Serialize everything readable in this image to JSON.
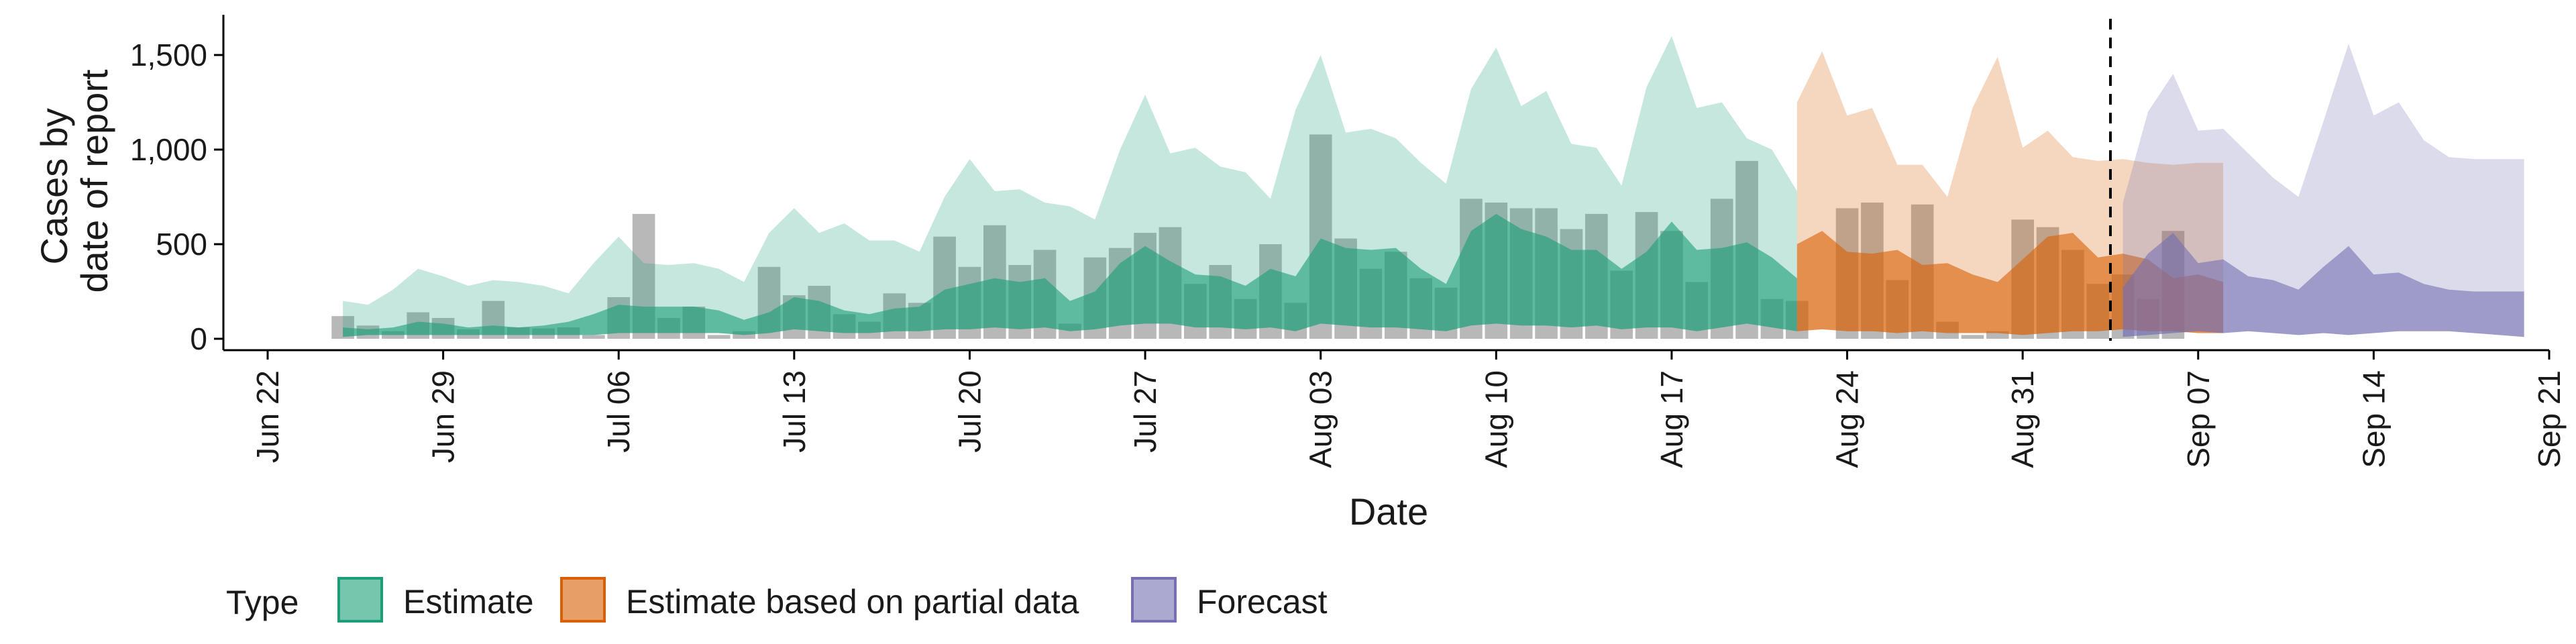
{
  "chart_data": {
    "type": "area",
    "xlabel": "Date",
    "ylabel_lines": [
      "Cases by",
      "date of report"
    ],
    "ylim": [
      0,
      1650
    ],
    "yticks": [
      0,
      500,
      1000,
      1500
    ],
    "ytick_labels": [
      "0",
      "500",
      "1,000",
      "1,500"
    ],
    "x_start": "2020-06-22",
    "x_end": "2020-09-21",
    "xticks": [
      "Jun 22",
      "Jun 29",
      "Jul 06",
      "Jul 13",
      "Jul 20",
      "Jul 27",
      "Aug 03",
      "Aug 10",
      "Aug 17",
      "Aug 24",
      "Aug 31",
      "Sep 07",
      "Sep 14",
      "Sep 21"
    ],
    "forecast_cutoff": "2020-09-03",
    "legend": {
      "title": "Type",
      "position": "bottom",
      "entries": [
        {
          "name": "Estimate",
          "color": "#1b9e77"
        },
        {
          "name": "Estimate based on partial data",
          "color": "#d95f02"
        },
        {
          "name": "Forecast",
          "color": "#7570b3"
        }
      ]
    },
    "colors": {
      "Estimate": "#1b9e77",
      "Estimate based on partial data": "#d95f02",
      "Forecast": "#7570b3",
      "bars": "#a0a0a0"
    },
    "bars": {
      "start": "2020-06-25",
      "values": [
        120,
        70,
        40,
        140,
        110,
        50,
        200,
        60,
        55,
        60,
        20,
        220,
        660,
        110,
        170,
        20,
        40,
        380,
        230,
        280,
        130,
        90,
        240,
        190,
        540,
        380,
        600,
        390,
        470,
        80,
        430,
        480,
        560,
        590,
        290,
        390,
        210,
        500,
        190,
        1080,
        530,
        370,
        460,
        320,
        270,
        740,
        720,
        690,
        690,
        580,
        660,
        360,
        670,
        570,
        300,
        740,
        940,
        210,
        200,
        0,
        690,
        720,
        310,
        710,
        90,
        20,
        40,
        630,
        590,
        470,
        290,
        340,
        210,
        570
      ]
    },
    "series": [
      {
        "name": "Estimate",
        "start": "2020-06-25",
        "lower": [
          10,
          20,
          20,
          20,
          20,
          20,
          20,
          20,
          20,
          20,
          20,
          30,
          30,
          30,
          30,
          30,
          20,
          30,
          50,
          40,
          30,
          30,
          40,
          40,
          50,
          50,
          60,
          50,
          60,
          40,
          50,
          70,
          80,
          80,
          60,
          60,
          50,
          60,
          40,
          80,
          70,
          60,
          60,
          50,
          40,
          70,
          80,
          70,
          70,
          60,
          70,
          50,
          60,
          60,
          40,
          60,
          80,
          60,
          40
        ],
        "median": [
          60,
          50,
          60,
          90,
          80,
          60,
          70,
          60,
          70,
          90,
          130,
          180,
          170,
          170,
          170,
          150,
          100,
          140,
          220,
          200,
          150,
          130,
          160,
          170,
          260,
          290,
          320,
          300,
          320,
          200,
          250,
          400,
          490,
          410,
          340,
          330,
          280,
          370,
          330,
          530,
          480,
          470,
          480,
          370,
          290,
          570,
          660,
          580,
          540,
          470,
          470,
          370,
          460,
          620,
          470,
          480,
          510,
          430,
          320
        ],
        "upper": [
          200,
          180,
          260,
          370,
          330,
          280,
          310,
          300,
          280,
          240,
          400,
          540,
          400,
          390,
          400,
          370,
          300,
          560,
          690,
          560,
          610,
          520,
          520,
          460,
          750,
          950,
          780,
          790,
          720,
          700,
          630,
          1000,
          1290,
          980,
          1010,
          910,
          880,
          740,
          1210,
          1500,
          1090,
          1110,
          1060,
          930,
          820,
          1320,
          1540,
          1230,
          1310,
          1030,
          1010,
          810,
          1330,
          1600,
          1220,
          1250,
          1060,
          1000,
          780
        ]
      },
      {
        "name": "Estimate based on partial data",
        "start": "2020-08-22",
        "lower": [
          40,
          50,
          40,
          40,
          30,
          40,
          30,
          30,
          30,
          20,
          30,
          40,
          40,
          50,
          40,
          40,
          30,
          30
        ],
        "median": [
          500,
          570,
          460,
          450,
          470,
          390,
          400,
          340,
          300,
          420,
          540,
          560,
          430,
          450,
          420,
          320,
          340,
          300
        ],
        "upper": [
          1250,
          1520,
          1180,
          1220,
          920,
          920,
          750,
          1220,
          1490,
          1010,
          1100,
          960,
          940,
          950,
          930,
          920,
          930,
          930
        ]
      },
      {
        "name": "Forecast",
        "start": "2020-09-04",
        "lower": [
          10,
          20,
          30,
          40,
          30,
          40,
          30,
          20,
          30,
          20,
          30,
          40,
          40,
          40,
          30,
          20,
          10
        ],
        "median": [
          270,
          450,
          560,
          400,
          420,
          330,
          310,
          260,
          380,
          490,
          340,
          350,
          290,
          260,
          250,
          250,
          250
        ],
        "upper": [
          720,
          1200,
          1400,
          1100,
          1110,
          980,
          850,
          750,
          1150,
          1560,
          1180,
          1250,
          1050,
          960,
          950,
          950,
          950
        ]
      }
    ]
  }
}
